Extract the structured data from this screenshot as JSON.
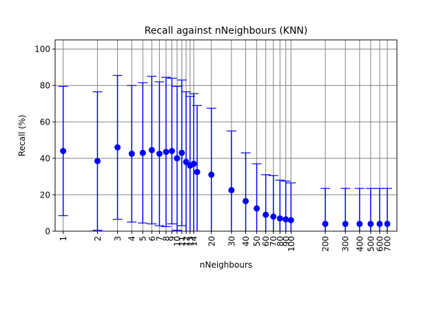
{
  "chart_data": {
    "type": "scatter",
    "title": "Recall against nNeighbours (KNN)",
    "xlabel": "nNeighbours",
    "ylabel": "Recall (%)",
    "xscale": "log",
    "xlim": [
      0.85,
      850
    ],
    "ylim": [
      0,
      105
    ],
    "grid": true,
    "marker_color": "#0000ff",
    "grid_color": "#808080",
    "yticks": [
      0,
      20,
      40,
      60,
      80,
      100
    ],
    "xticks": [
      1,
      2,
      3,
      4,
      5,
      6,
      7,
      8,
      9,
      10,
      11,
      12,
      13,
      14,
      20,
      30,
      40,
      50,
      60,
      70,
      80,
      90,
      100,
      200,
      300,
      400,
      500,
      600,
      700
    ],
    "points": [
      {
        "x": 1,
        "y": 44.0,
        "err": 35.5
      },
      {
        "x": 2,
        "y": 38.5,
        "err": 38.0
      },
      {
        "x": 3,
        "y": 46.0,
        "err": 39.5
      },
      {
        "x": 4,
        "y": 42.5,
        "err": 37.5
      },
      {
        "x": 5,
        "y": 43.0,
        "err": 38.5
      },
      {
        "x": 6,
        "y": 44.5,
        "err": 40.5
      },
      {
        "x": 7,
        "y": 42.5,
        "err": 39.5
      },
      {
        "x": 8,
        "y": 43.5,
        "err": 41.0
      },
      {
        "x": 9,
        "y": 44.0,
        "err": 40.0
      },
      {
        "x": 10,
        "y": 40.0,
        "err": 39.5
      },
      {
        "x": 11,
        "y": 43.0,
        "err": 40.0
      },
      {
        "x": 12,
        "y": 38.0,
        "err": 38.5
      },
      {
        "x": 13,
        "y": 36.0,
        "err": 38.0
      },
      {
        "x": 14,
        "y": 37.0,
        "err": 38.5
      },
      {
        "x": 15,
        "y": 32.5,
        "err": 36.5
      },
      {
        "x": 20,
        "y": 31.0,
        "err": 36.5
      },
      {
        "x": 30,
        "y": 22.5,
        "err": 32.5
      },
      {
        "x": 40,
        "y": 16.5,
        "err": 26.5
      },
      {
        "x": 50,
        "y": 12.5,
        "err": 24.5
      },
      {
        "x": 60,
        "y": 9.0,
        "err": 22.0
      },
      {
        "x": 70,
        "y": 8.0,
        "err": 22.5
      },
      {
        "x": 80,
        "y": 7.0,
        "err": 21.0
      },
      {
        "x": 90,
        "y": 6.5,
        "err": 21.0
      },
      {
        "x": 100,
        "y": 6.0,
        "err": 20.5
      },
      {
        "x": 200,
        "y": 4.0,
        "err": 19.5
      },
      {
        "x": 300,
        "y": 4.0,
        "err": 19.5
      },
      {
        "x": 400,
        "y": 4.0,
        "err": 19.5
      },
      {
        "x": 500,
        "y": 4.0,
        "err": 19.5
      },
      {
        "x": 600,
        "y": 4.0,
        "err": 19.5
      },
      {
        "x": 700,
        "y": 4.0,
        "err": 19.5
      }
    ]
  }
}
